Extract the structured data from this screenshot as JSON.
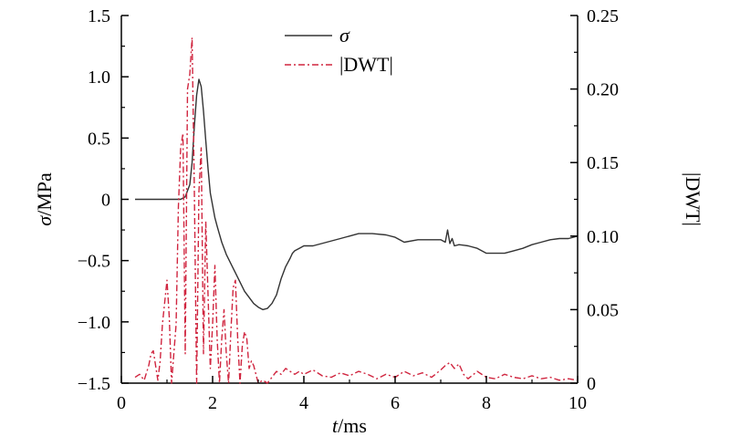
{
  "chart_data": {
    "type": "line",
    "xlabel": "t/ms",
    "xlabel_italic": "t",
    "xlabel_rest": "/ms",
    "ylabel": "σ/MPa",
    "ylabel_italic": "σ",
    "ylabel_rest": "/MPa",
    "y2label": "|DWT|",
    "xlim": [
      0,
      10
    ],
    "ylim": [
      -1.5,
      1.5
    ],
    "y2lim": [
      0,
      0.25
    ],
    "x_ticks": [
      0,
      2,
      4,
      6,
      8,
      10
    ],
    "x_tick_labels": [
      "0",
      "2",
      "4",
      "6",
      "8",
      "10"
    ],
    "y_ticks": [
      1.5,
      1.0,
      0.5,
      0,
      -0.5,
      -1.0,
      -1.5
    ],
    "y_tick_labels": [
      "1.5",
      "1.0",
      "0.5",
      "0",
      "−0.5",
      "−1.0",
      "−1.5"
    ],
    "y2_ticks": [
      0.25,
      0.2,
      0.15,
      0.1,
      0.05,
      0
    ],
    "y2_tick_labels": [
      "0.25",
      "0.20",
      "0.15",
      "0.10",
      "0.05",
      "0"
    ],
    "grid": false,
    "legend_position": "top-center",
    "series": [
      {
        "name": "σ",
        "axis": "left",
        "color": "#333333",
        "style": "solid",
        "x": [
          0.3,
          0.6,
          1.0,
          1.3,
          1.4,
          1.5,
          1.55,
          1.6,
          1.65,
          1.7,
          1.75,
          1.8,
          1.85,
          1.9,
          1.95,
          2.0,
          2.05,
          2.1,
          2.2,
          2.3,
          2.5,
          2.7,
          2.9,
          3.0,
          3.1,
          3.2,
          3.3,
          3.4,
          3.5,
          3.6,
          3.7,
          3.75,
          3.8,
          3.9,
          4.0,
          4.2,
          4.5,
          4.8,
          5.0,
          5.2,
          5.5,
          5.8,
          6.0,
          6.2,
          6.5,
          6.8,
          7.0,
          7.1,
          7.15,
          7.2,
          7.25,
          7.3,
          7.4,
          7.6,
          7.8,
          8.0,
          8.2,
          8.4,
          8.6,
          8.8,
          9.0,
          9.2,
          9.4,
          9.6,
          9.8,
          10.0
        ],
        "y": [
          0.0,
          0.0,
          0.0,
          0.0,
          0.02,
          0.12,
          0.3,
          0.6,
          0.85,
          0.98,
          0.92,
          0.72,
          0.48,
          0.25,
          0.05,
          -0.05,
          -0.15,
          -0.22,
          -0.35,
          -0.45,
          -0.6,
          -0.75,
          -0.85,
          -0.88,
          -0.9,
          -0.89,
          -0.85,
          -0.78,
          -0.65,
          -0.55,
          -0.48,
          -0.44,
          -0.42,
          -0.4,
          -0.38,
          -0.38,
          -0.35,
          -0.32,
          -0.3,
          -0.28,
          -0.28,
          -0.29,
          -0.31,
          -0.35,
          -0.33,
          -0.33,
          -0.33,
          -0.35,
          -0.25,
          -0.36,
          -0.32,
          -0.38,
          -0.37,
          -0.38,
          -0.4,
          -0.44,
          -0.44,
          -0.44,
          -0.42,
          -0.4,
          -0.37,
          -0.35,
          -0.33,
          -0.32,
          -0.32,
          -0.3
        ]
      },
      {
        "name": "|DWT|",
        "axis": "right",
        "color": "#d0253f",
        "style": "dashdot",
        "x": [
          0.3,
          0.4,
          0.5,
          0.6,
          0.65,
          0.7,
          0.8,
          0.85,
          0.9,
          1.0,
          1.05,
          1.1,
          1.2,
          1.25,
          1.3,
          1.35,
          1.4,
          1.45,
          1.5,
          1.55,
          1.6,
          1.65,
          1.7,
          1.75,
          1.8,
          1.85,
          1.9,
          1.95,
          2.0,
          2.05,
          2.1,
          2.15,
          2.2,
          2.25,
          2.3,
          2.35,
          2.4,
          2.45,
          2.5,
          2.55,
          2.6,
          2.65,
          2.7,
          2.75,
          2.8,
          2.85,
          2.9,
          3.0,
          3.1,
          3.2,
          3.3,
          3.4,
          3.5,
          3.6,
          3.7,
          3.8,
          3.9,
          4.0,
          4.2,
          4.4,
          4.6,
          4.8,
          5.0,
          5.2,
          5.4,
          5.6,
          5.8,
          6.0,
          6.2,
          6.4,
          6.6,
          6.8,
          7.0,
          7.1,
          7.2,
          7.3,
          7.4,
          7.5,
          7.6,
          7.8,
          8.0,
          8.2,
          8.4,
          8.6,
          8.8,
          9.0,
          9.2,
          9.4,
          9.6,
          9.8,
          10.0
        ],
        "y": [
          0.004,
          0.006,
          0.002,
          0.012,
          0.02,
          0.022,
          0.002,
          0.015,
          0.04,
          0.07,
          0.045,
          0.0,
          0.04,
          0.12,
          0.16,
          0.17,
          0.02,
          0.2,
          0.21,
          0.235,
          0.13,
          0.0,
          0.13,
          0.16,
          0.02,
          0.11,
          0.06,
          0.01,
          0.04,
          0.08,
          0.03,
          0.0,
          0.03,
          0.05,
          0.02,
          0.0,
          0.035,
          0.065,
          0.07,
          0.03,
          0.0,
          0.025,
          0.035,
          0.03,
          0.01,
          0.015,
          0.012,
          0.0,
          0.002,
          0.0,
          0.004,
          0.008,
          0.006,
          0.01,
          0.008,
          0.006,
          0.008,
          0.006,
          0.009,
          0.005,
          0.004,
          0.007,
          0.005,
          0.008,
          0.006,
          0.003,
          0.006,
          0.004,
          0.008,
          0.005,
          0.007,
          0.004,
          0.009,
          0.012,
          0.014,
          0.01,
          0.013,
          0.006,
          0.003,
          0.008,
          0.004,
          0.003,
          0.006,
          0.004,
          0.003,
          0.005,
          0.003,
          0.004,
          0.002,
          0.003,
          0.002
        ]
      }
    ]
  }
}
